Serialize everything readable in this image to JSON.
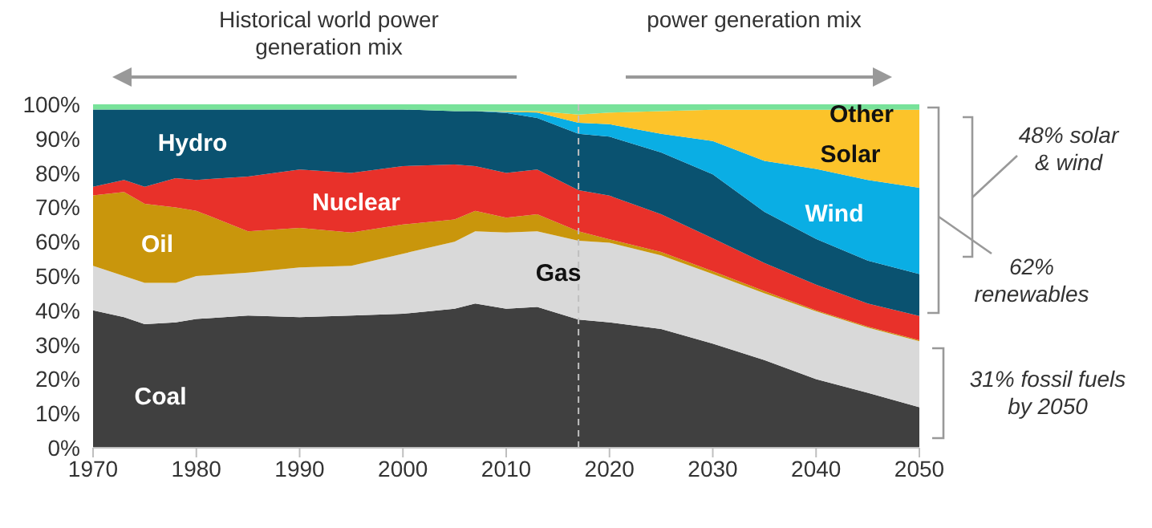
{
  "chart_data": {
    "type": "area",
    "stacked": true,
    "x": [
      1970,
      1973,
      1975,
      1978,
      1980,
      1985,
      1990,
      1995,
      2000,
      2005,
      2007,
      2010,
      2013,
      2017,
      2020,
      2025,
      2030,
      2035,
      2040,
      2045,
      2050
    ],
    "xlim": [
      1970,
      2050
    ],
    "xticks": [
      1970,
      1980,
      1990,
      2000,
      2010,
      2020,
      2030,
      2040,
      2050
    ],
    "ylim": [
      0,
      100
    ],
    "yticks": [
      {
        "value": 0,
        "label": "0%"
      },
      {
        "value": 10,
        "label": "10%"
      },
      {
        "value": 20,
        "label": "20%"
      },
      {
        "value": 30,
        "label": "30%"
      },
      {
        "value": 40,
        "label": "40%"
      },
      {
        "value": 50,
        "label": "50%"
      },
      {
        "value": 60,
        "label": "60%"
      },
      {
        "value": 70,
        "label": "70%"
      },
      {
        "value": 80,
        "label": "80%"
      },
      {
        "value": 90,
        "label": "90%"
      },
      {
        "value": 100,
        "label": "100%"
      }
    ],
    "series": [
      {
        "name": "Coal",
        "color": "#404040",
        "values": [
          40,
          38,
          36,
          36.5,
          37.5,
          38.5,
          38,
          38.5,
          39,
          40.5,
          42,
          40.5,
          41,
          37.3,
          36.5,
          34.6,
          30.3,
          25.5,
          20,
          16,
          11.8
        ]
      },
      {
        "name": "Gas",
        "color": "#d9d9d9",
        "values": [
          13,
          12,
          12,
          11.5,
          12.5,
          12.5,
          14.5,
          14.5,
          17.5,
          19.5,
          21,
          22.2,
          22,
          23,
          23.2,
          21.4,
          20.3,
          19.5,
          19.7,
          19,
          19.2
        ]
      },
      {
        "name": "Oil",
        "color": "#c9960c",
        "values": [
          20.5,
          24.5,
          23,
          22,
          19,
          12,
          11.5,
          9.7,
          8.5,
          6.5,
          6,
          4.3,
          5,
          2.7,
          1,
          1,
          0.8,
          0.6,
          0.3,
          0.3,
          0.3
        ]
      },
      {
        "name": "Nuclear",
        "color": "#e8312a",
        "values": [
          2.5,
          3.5,
          5,
          8.5,
          9,
          16,
          17,
          17.3,
          17,
          16,
          13,
          13,
          13,
          12,
          12.7,
          11,
          9.6,
          8.2,
          7.5,
          6.7,
          7.1
        ]
      },
      {
        "name": "Hydro",
        "color": "#0a5270",
        "values": [
          22.5,
          20.5,
          22.5,
          20,
          20.5,
          19.5,
          17.5,
          18.5,
          16.5,
          15.5,
          16,
          17.5,
          15,
          16.4,
          17.2,
          18,
          18.6,
          14.9,
          13.3,
          12.5,
          12.2
        ]
      },
      {
        "name": "Wind",
        "color": "#0aaee4",
        "values": [
          0,
          0,
          0,
          0,
          0,
          0,
          0,
          0,
          0,
          0,
          0,
          0.3,
          1.6,
          3.2,
          3.6,
          5.4,
          9.7,
          14.8,
          20.4,
          23.5,
          25.1
        ]
      },
      {
        "name": "Solar",
        "color": "#fcc32a",
        "values": [
          0,
          0,
          0,
          0,
          0,
          0,
          0,
          0,
          0,
          0,
          0,
          0.2,
          0.4,
          2.4,
          3.4,
          6.6,
          9.1,
          14.9,
          17.2,
          20.4,
          22.7
        ]
      },
      {
        "name": "Other",
        "color": "#78e29a",
        "values": [
          1.5,
          1.5,
          1.5,
          1.5,
          1.5,
          1.5,
          1.5,
          1.5,
          1.5,
          2,
          2,
          2,
          2,
          3,
          2.4,
          2,
          1.6,
          1.6,
          1.6,
          1.6,
          1.6
        ]
      }
    ],
    "ref_lines": [
      {
        "axis": "x",
        "value": 2017,
        "color": "#bfbfbf",
        "line_style": "dashed"
      }
    ],
    "annotations": [
      "Historical world power generation mix",
      "power generation mix",
      "48% solar & wind",
      "62% renewables",
      "31% fossil fuels by 2050"
    ]
  }
}
